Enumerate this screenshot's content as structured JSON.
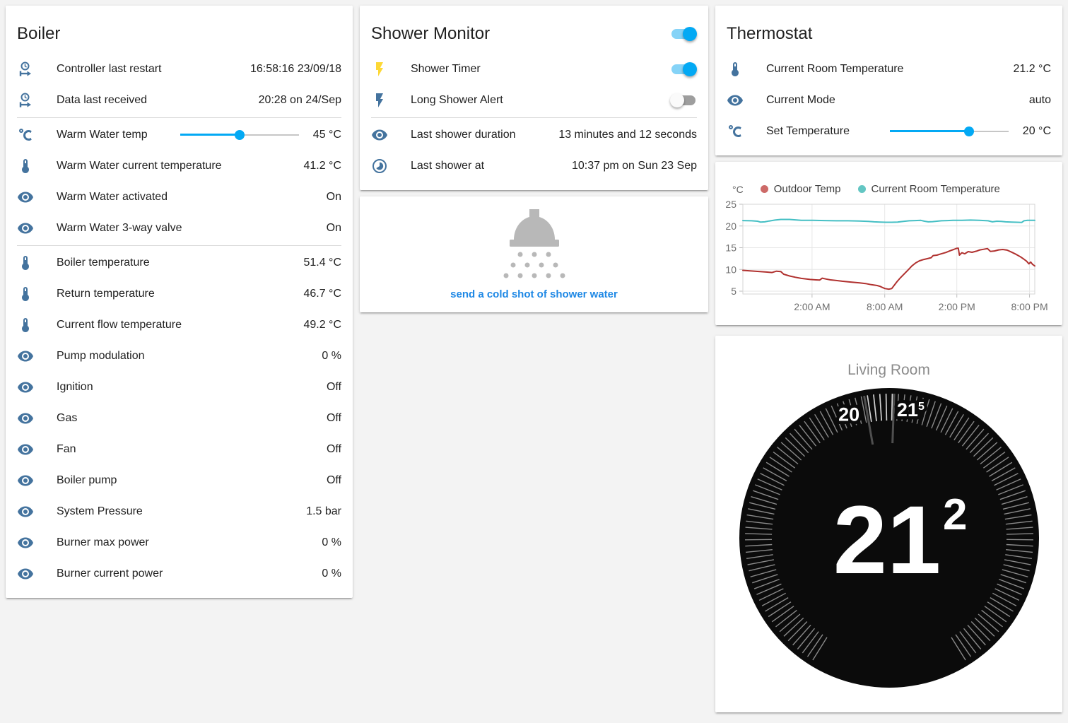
{
  "colors": {
    "accent": "#03a9f4",
    "icon_default": "#44739e",
    "icon_active": "#fdd835",
    "link": "#1e88e5",
    "shower_icon_gray": "#b8b8b8"
  },
  "boiler_card": {
    "title": "Boiler",
    "rows": [
      {
        "icon": "clock-start",
        "label": "Controller last restart",
        "value": "16:58:16 23/09/18",
        "type": "text"
      },
      {
        "icon": "clock-start",
        "label": "Data last received",
        "value": "20:28 on 24/Sep",
        "type": "text",
        "divider_after": true
      },
      {
        "icon": "temperature-celsius",
        "label": "Warm Water temp",
        "value": "45 °C",
        "type": "slider",
        "fraction": 0.5
      },
      {
        "icon": "thermometer",
        "label": "Warm Water current temperature",
        "value": "41.2 °C",
        "type": "text"
      },
      {
        "icon": "eye",
        "label": "Warm Water activated",
        "value": "On",
        "type": "text"
      },
      {
        "icon": "eye",
        "label": "Warm Water 3-way valve",
        "value": "On",
        "type": "text",
        "divider_after": true
      },
      {
        "icon": "thermometer",
        "label": "Boiler temperature",
        "value": "51.4 °C",
        "type": "text"
      },
      {
        "icon": "thermometer",
        "label": "Return temperature",
        "value": "46.7 °C",
        "type": "text"
      },
      {
        "icon": "thermometer",
        "label": "Current flow temperature",
        "value": "49.2 °C",
        "type": "text"
      },
      {
        "icon": "eye",
        "label": "Pump modulation",
        "value": "0 %",
        "type": "text"
      },
      {
        "icon": "eye",
        "label": "Ignition",
        "value": "Off",
        "type": "text"
      },
      {
        "icon": "eye",
        "label": "Gas",
        "value": "Off",
        "type": "text"
      },
      {
        "icon": "eye",
        "label": "Fan",
        "value": "Off",
        "type": "text"
      },
      {
        "icon": "eye",
        "label": "Boiler pump",
        "value": "Off",
        "type": "text"
      },
      {
        "icon": "eye",
        "label": "System Pressure",
        "value": "1.5 bar",
        "type": "text"
      },
      {
        "icon": "eye",
        "label": "Burner max power",
        "value": "0 %",
        "type": "text"
      },
      {
        "icon": "eye",
        "label": "Burner current power",
        "value": "0 %",
        "type": "text"
      }
    ]
  },
  "shower_card": {
    "title": "Shower Monitor",
    "header_toggle_state": "on",
    "rows": [
      {
        "icon": "flash",
        "icon_color": "#fdd835",
        "label": "Shower Timer",
        "type": "toggle",
        "state": "on"
      },
      {
        "icon": "flash",
        "icon_color": "#44739e",
        "label": "Long Shower Alert",
        "type": "toggle",
        "state": "off",
        "divider_after": true
      },
      {
        "icon": "eye",
        "label": "Last shower duration",
        "value": "13 minutes and 12 seconds",
        "type": "text"
      },
      {
        "icon": "clock",
        "label": "Last shower at",
        "value": "10:37 pm on Sun 23 Sep",
        "type": "text"
      }
    ]
  },
  "shower_action_card": {
    "icon": "shower-head",
    "button_label": "send a cold shot of shower water"
  },
  "thermostat_card": {
    "title": "Thermostat",
    "rows": [
      {
        "icon": "thermometer",
        "label": "Current Room Temperature",
        "value": "21.2 °C",
        "type": "text"
      },
      {
        "icon": "eye",
        "label": "Current Mode",
        "value": "auto",
        "type": "text"
      },
      {
        "icon": "temperature-celsius",
        "label": "Set Temperature",
        "value": "20 °C",
        "type": "slider",
        "fraction": 0.68
      }
    ]
  },
  "chart_data": {
    "type": "line",
    "unit": "°C",
    "legend_position": "top",
    "grid": true,
    "x_axis": {
      "note": "x values are fractions 0-1 across the ~24h plot width",
      "ticks": [
        {
          "label": "2:00 AM",
          "pos": 0.237
        },
        {
          "label": "8:00 AM",
          "pos": 0.486
        },
        {
          "label": "2:00 PM",
          "pos": 0.733
        },
        {
          "label": "8:00 PM",
          "pos": 0.982
        }
      ]
    },
    "y_axis": {
      "ticks": [
        25,
        20,
        15,
        10,
        5
      ],
      "range": [
        4.3,
        25
      ]
    },
    "series": [
      {
        "name": "Outdoor Temp",
        "color": "#b0312f",
        "dot_color": "#cd6a68",
        "points": [
          [
            0,
            9.8
          ],
          [
            0.02,
            9.7
          ],
          [
            0.05,
            9.55
          ],
          [
            0.08,
            9.4
          ],
          [
            0.1,
            9.3
          ],
          [
            0.115,
            9.6
          ],
          [
            0.13,
            9.5
          ],
          [
            0.14,
            8.9
          ],
          [
            0.16,
            8.5
          ],
          [
            0.18,
            8.2
          ],
          [
            0.2,
            7.95
          ],
          [
            0.23,
            7.7
          ],
          [
            0.25,
            7.6
          ],
          [
            0.263,
            7.55
          ],
          [
            0.272,
            8.0
          ],
          [
            0.285,
            7.8
          ],
          [
            0.3,
            7.6
          ],
          [
            0.32,
            7.45
          ],
          [
            0.34,
            7.3
          ],
          [
            0.37,
            7.1
          ],
          [
            0.4,
            6.9
          ],
          [
            0.42,
            6.75
          ],
          [
            0.44,
            6.5
          ],
          [
            0.46,
            6.3
          ],
          [
            0.47,
            6.1
          ],
          [
            0.48,
            5.8
          ],
          [
            0.487,
            5.6
          ],
          [
            0.5,
            5.45
          ],
          [
            0.51,
            5.6
          ],
          [
            0.518,
            6.3
          ],
          [
            0.528,
            7.2
          ],
          [
            0.54,
            8.1
          ],
          [
            0.553,
            9.0
          ],
          [
            0.566,
            9.9
          ],
          [
            0.579,
            10.8
          ],
          [
            0.592,
            11.5
          ],
          [
            0.605,
            12.0
          ],
          [
            0.62,
            12.3
          ],
          [
            0.633,
            12.5
          ],
          [
            0.645,
            12.7
          ],
          [
            0.652,
            13.2
          ],
          [
            0.665,
            13.3
          ],
          [
            0.68,
            13.6
          ],
          [
            0.695,
            13.9
          ],
          [
            0.71,
            14.3
          ],
          [
            0.722,
            14.6
          ],
          [
            0.732,
            14.85
          ],
          [
            0.738,
            14.9
          ],
          [
            0.742,
            13.3
          ],
          [
            0.75,
            13.85
          ],
          [
            0.76,
            13.6
          ],
          [
            0.772,
            14.1
          ],
          [
            0.785,
            13.95
          ],
          [
            0.8,
            14.2
          ],
          [
            0.812,
            14.5
          ],
          [
            0.825,
            14.65
          ],
          [
            0.838,
            14.8
          ],
          [
            0.848,
            14.15
          ],
          [
            0.862,
            14.25
          ],
          [
            0.876,
            14.5
          ],
          [
            0.89,
            14.6
          ],
          [
            0.905,
            14.45
          ],
          [
            0.92,
            14.0
          ],
          [
            0.935,
            13.5
          ],
          [
            0.95,
            12.95
          ],
          [
            0.962,
            12.4
          ],
          [
            0.972,
            11.9
          ],
          [
            0.98,
            11.3
          ],
          [
            0.986,
            11.7
          ],
          [
            0.992,
            11.2
          ],
          [
            1,
            10.8
          ]
        ]
      },
      {
        "name": "Current Room Temperature",
        "color": "#45bfc4",
        "dot_color": "#63c6c3",
        "points": [
          [
            0,
            21.25
          ],
          [
            0.03,
            21.2
          ],
          [
            0.05,
            21.1
          ],
          [
            0.06,
            20.9
          ],
          [
            0.075,
            20.95
          ],
          [
            0.09,
            21.15
          ],
          [
            0.11,
            21.35
          ],
          [
            0.13,
            21.5
          ],
          [
            0.16,
            21.5
          ],
          [
            0.18,
            21.4
          ],
          [
            0.2,
            21.3
          ],
          [
            0.24,
            21.3
          ],
          [
            0.28,
            21.25
          ],
          [
            0.32,
            21.2
          ],
          [
            0.36,
            21.2
          ],
          [
            0.4,
            21.15
          ],
          [
            0.43,
            21.05
          ],
          [
            0.45,
            20.95
          ],
          [
            0.47,
            20.9
          ],
          [
            0.49,
            20.85
          ],
          [
            0.51,
            20.85
          ],
          [
            0.53,
            20.9
          ],
          [
            0.55,
            21.05
          ],
          [
            0.57,
            21.2
          ],
          [
            0.59,
            21.25
          ],
          [
            0.61,
            21.3
          ],
          [
            0.622,
            21.1
          ],
          [
            0.635,
            20.95
          ],
          [
            0.65,
            21.0
          ],
          [
            0.665,
            21.1
          ],
          [
            0.68,
            21.2
          ],
          [
            0.7,
            21.25
          ],
          [
            0.72,
            21.3
          ],
          [
            0.75,
            21.3
          ],
          [
            0.78,
            21.35
          ],
          [
            0.81,
            21.3
          ],
          [
            0.84,
            21.2
          ],
          [
            0.855,
            20.95
          ],
          [
            0.87,
            21.1
          ],
          [
            0.885,
            21.05
          ],
          [
            0.9,
            20.95
          ],
          [
            0.92,
            20.9
          ],
          [
            0.94,
            20.85
          ],
          [
            0.955,
            20.8
          ],
          [
            0.963,
            21.2
          ],
          [
            0.975,
            21.3
          ],
          [
            1,
            21.3
          ]
        ]
      }
    ]
  },
  "thermostat_dial": {
    "room_name": "Living Room",
    "current_temperature": "21.2",
    "display_main": "21",
    "display_sup": "2",
    "scale_labels": [
      {
        "text_main": "20",
        "text_sup": "",
        "angle_deg": -18
      },
      {
        "text_main": "21",
        "text_sup": "5",
        "angle_deg": 9.5
      }
    ],
    "pointer_ticks_deg": [
      -10,
      2
    ],
    "highlight_deg": [
      -10,
      2
    ],
    "arc_deg": 296,
    "tick_count": 120
  }
}
